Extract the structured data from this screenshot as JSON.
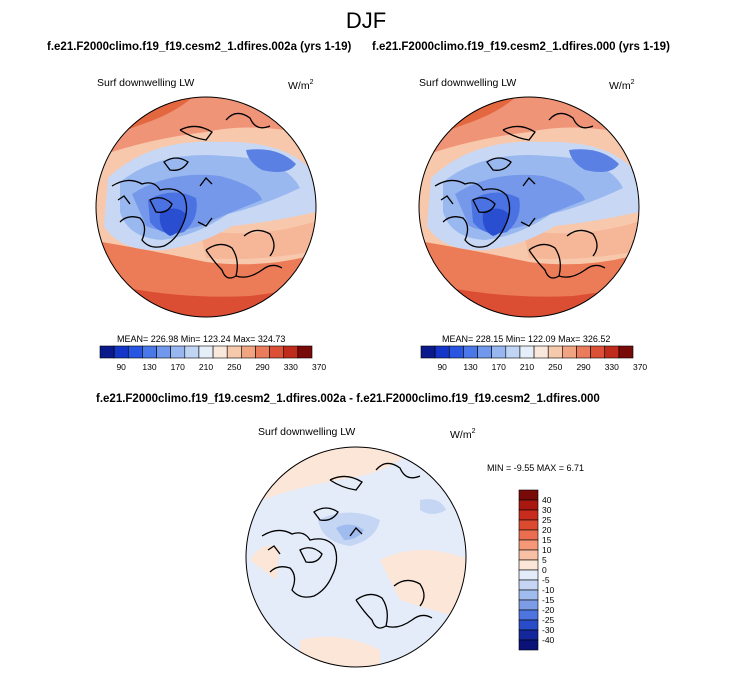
{
  "season": "DJF",
  "panels": {
    "left": {
      "run": "f.e21.F2000climo.f19_f19.cesm2_1.dfires.002a (yrs 1-19)",
      "variable": "Surf downwelling LW",
      "units_base": "W/m",
      "units_exp": "2",
      "stats": "MEAN= 226.98  Min= 123.24  Max= 324.73",
      "colorbar_ticks": [
        "90",
        "130",
        "170",
        "210",
        "250",
        "290",
        "330",
        "370"
      ]
    },
    "right": {
      "run": "f.e21.F2000climo.f19_f19.cesm2_1.dfires.000 (yrs 1-19)",
      "variable": "Surf downwelling LW",
      "units_base": "W/m",
      "units_exp": "2",
      "stats": "MEAN= 228.15  Min= 122.09  Max= 326.52",
      "colorbar_ticks": [
        "90",
        "130",
        "170",
        "210",
        "250",
        "290",
        "330",
        "370"
      ]
    },
    "diff": {
      "title": "f.e21.F2000climo.f19_f19.cesm2_1.dfires.002a - f.e21.F2000climo.f19_f19.cesm2_1.dfires.000",
      "variable": "Surf downwelling LW",
      "units_base": "W/m",
      "units_exp": "2",
      "stats": "MIN = -9.55 MAX =   6.71",
      "colorbar_ticks": [
        "40",
        "30",
        "25",
        "20",
        "15",
        "10",
        "5",
        "0",
        "-5",
        "-10",
        "-15",
        "-20",
        "-25",
        "-30",
        "-40"
      ]
    }
  },
  "colors": {
    "abs_scale": [
      "#0a1a8c",
      "#1436c8",
      "#2856e0",
      "#4a78e8",
      "#7098ec",
      "#98b6f0",
      "#c0d4f4",
      "#e6eefa",
      "#fbe8dc",
      "#f6c8ac",
      "#f0a482",
      "#ea7c5c",
      "#dc5036",
      "#c02c1c",
      "#780a08"
    ],
    "diff_scale": [
      "#780a08",
      "#a81810",
      "#c82c1c",
      "#dc4a30",
      "#ec6e50",
      "#f49878",
      "#f8c0a4",
      "#fbe6d8",
      "#e4ecfa",
      "#c4d6f4",
      "#a0bcee",
      "#7c9ce6",
      "#4e74e0",
      "#2a4cc8",
      "#14289c",
      "#0a127a"
    ]
  }
}
